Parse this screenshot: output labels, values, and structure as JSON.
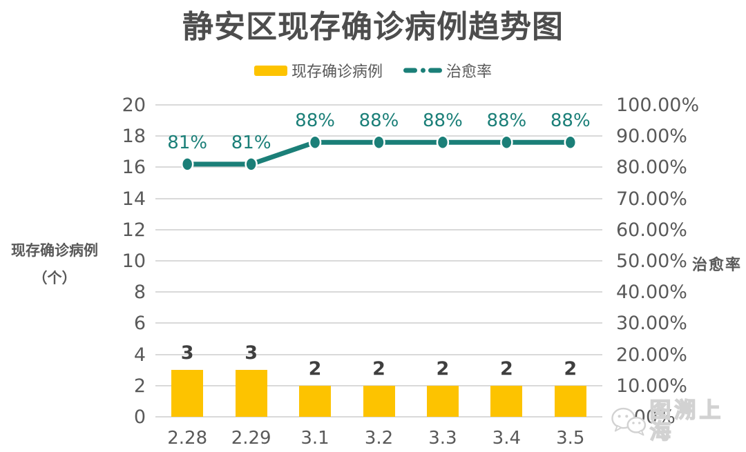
{
  "title": "静安区现存确诊病例趋势图",
  "legend": [
    {
      "label": "现存确诊病例",
      "swatch": "bar-swatch",
      "color": "#FDC300"
    },
    {
      "label": "治愈率",
      "swatch": "dash-dot-line-swatch",
      "color": "#1B7F78"
    }
  ],
  "watermark": {
    "text": "图溯上海",
    "icon": "wechat-icon"
  },
  "colors": {
    "bar": "#FDC300",
    "line": "#1B7F78",
    "grid": "#D9D9D9",
    "axis_text": "#595959",
    "bar_label": "#3F3F3F",
    "title_text": "#4D4D4D",
    "watermark": "#D2D2D2"
  },
  "chart_data": {
    "type": "bar",
    "subtype": "combo-bar-line",
    "title": "静安区现存确诊病例趋势图",
    "categories": [
      "2.28",
      "2.29",
      "3.1",
      "3.2",
      "3.3",
      "3.4",
      "3.5"
    ],
    "series": [
      {
        "name": "现存确诊病例",
        "type": "bar",
        "axis": "left",
        "color": "#FDC300",
        "values": [
          3,
          3,
          2,
          2,
          2,
          2,
          2
        ],
        "data_labels": [
          "3",
          "3",
          "2",
          "2",
          "2",
          "2",
          "2"
        ]
      },
      {
        "name": "治愈率",
        "type": "line",
        "axis": "right",
        "color": "#1B7F78",
        "values": [
          81,
          81,
          88,
          88,
          88,
          88,
          88
        ],
        "data_labels": [
          "81%",
          "81%",
          "88%",
          "88%",
          "88%",
          "88%",
          "88%"
        ]
      }
    ],
    "left_axis": {
      "label": "现存确诊病例（个）",
      "label_line1": "现存确诊病例",
      "label_line2": "（个）",
      "min": 0,
      "max": 20,
      "ticks": [
        "0",
        "2",
        "4",
        "6",
        "8",
        "10",
        "12",
        "14",
        "16",
        "18",
        "20"
      ]
    },
    "right_axis": {
      "label": "治愈率",
      "min": 0,
      "max": 100,
      "ticks": [
        "0.00%",
        "10.00%",
        "20.00%",
        "30.00%",
        "40.00%",
        "50.00%",
        "60.00%",
        "70.00%",
        "80.00%",
        "90.00%",
        "100.00%"
      ]
    },
    "grid": true,
    "legend_position": "top"
  }
}
